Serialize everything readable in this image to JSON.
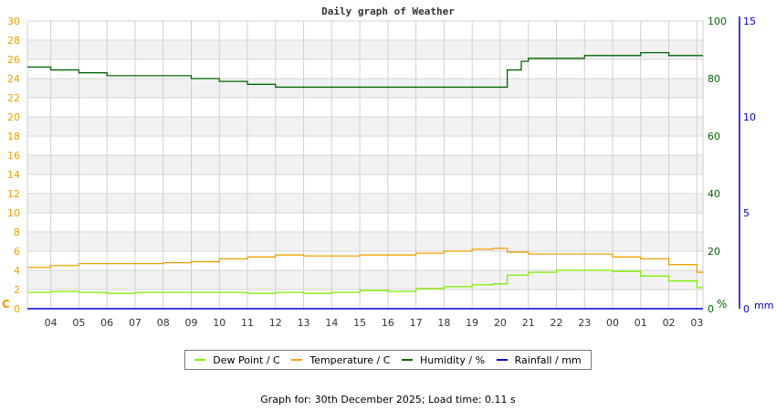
{
  "chart_data": {
    "type": "line",
    "title": "Daily graph of Weather",
    "xlabel": "",
    "x_ticks": [
      "04",
      "05",
      "06",
      "07",
      "08",
      "09",
      "10",
      "11",
      "12",
      "13",
      "14",
      "15",
      "16",
      "17",
      "18",
      "19",
      "20",
      "21",
      "22",
      "23",
      "00",
      "01",
      "02",
      "03"
    ],
    "axes": {
      "left": {
        "unit": "C",
        "ylim": [
          0,
          30
        ],
        "ticks": [
          0,
          2,
          4,
          6,
          8,
          10,
          12,
          14,
          16,
          18,
          20,
          22,
          24,
          26,
          28,
          30
        ],
        "color": "#f0a000"
      },
      "right1": {
        "unit": "%",
        "ylim": [
          0,
          100
        ],
        "ticks": [
          0,
          20,
          40,
          60,
          80,
          100
        ],
        "color": "#006600"
      },
      "right2": {
        "unit": "mm",
        "ylim": [
          0,
          15
        ],
        "ticks": [
          0,
          5,
          10,
          15
        ],
        "color": "#0000cc"
      }
    },
    "grid": true,
    "legend_position": "bottom",
    "series": [
      {
        "name": "Dew Point / C",
        "color": "#80ee00",
        "axis": "left",
        "x": [
          "03:10",
          "04:00",
          "05:00",
          "06:00",
          "07:00",
          "08:00",
          "09:00",
          "10:00",
          "11:00",
          "12:00",
          "13:00",
          "14:00",
          "15:00",
          "16:00",
          "17:00",
          "18:00",
          "19:00",
          "19:45",
          "20:15",
          "21:00",
          "22:00",
          "23:00",
          "00:00",
          "01:00",
          "02:00",
          "03:00"
        ],
        "values": [
          1.7,
          1.8,
          1.7,
          1.6,
          1.7,
          1.7,
          1.7,
          1.7,
          1.6,
          1.7,
          1.6,
          1.7,
          1.9,
          1.8,
          2.1,
          2.3,
          2.5,
          2.6,
          3.5,
          3.8,
          4.0,
          4.0,
          3.9,
          3.4,
          2.9,
          2.2
        ]
      },
      {
        "name": "Temperature / C",
        "color": "#f0a000",
        "axis": "left",
        "x": [
          "03:10",
          "04:00",
          "05:00",
          "06:00",
          "07:00",
          "08:00",
          "09:00",
          "10:00",
          "11:00",
          "12:00",
          "13:00",
          "14:00",
          "15:00",
          "16:00",
          "17:00",
          "18:00",
          "19:00",
          "19:45",
          "20:15",
          "21:00",
          "22:00",
          "23:00",
          "00:00",
          "01:00",
          "02:00",
          "03:00"
        ],
        "values": [
          4.3,
          4.5,
          4.7,
          4.7,
          4.7,
          4.8,
          4.9,
          5.2,
          5.4,
          5.6,
          5.5,
          5.5,
          5.6,
          5.6,
          5.8,
          6.0,
          6.2,
          6.3,
          5.9,
          5.7,
          5.7,
          5.7,
          5.4,
          5.2,
          4.6,
          3.8
        ]
      },
      {
        "name": "Humidity / %",
        "color": "#006600",
        "axis": "right1",
        "x": [
          "03:10",
          "04:00",
          "05:00",
          "06:00",
          "07:00",
          "08:00",
          "09:00",
          "10:00",
          "11:00",
          "12:00",
          "13:00",
          "14:00",
          "15:00",
          "16:00",
          "17:00",
          "18:00",
          "19:00",
          "19:45",
          "20:15",
          "20:45",
          "21:00",
          "22:00",
          "23:00",
          "00:00",
          "01:00",
          "02:00",
          "03:00"
        ],
        "values": [
          84,
          83,
          82,
          81,
          81,
          81,
          80,
          79,
          78,
          77,
          77,
          77,
          77,
          77,
          77,
          77,
          77,
          77,
          83,
          86,
          87,
          87,
          88,
          88,
          89,
          88,
          88
        ]
      },
      {
        "name": "Rainfall / mm",
        "color": "#0000cc",
        "axis": "right2",
        "x": [
          "03:10",
          "03:00"
        ],
        "values": [
          0,
          0
        ]
      }
    ]
  },
  "header": {
    "title": "Daily graph of Weather"
  },
  "axis_labels": {
    "left_unit": "C",
    "right1_unit": "%",
    "right2_unit": "mm"
  },
  "legend": {
    "items": [
      {
        "label": "Dew Point / C",
        "color": "#80ee00"
      },
      {
        "label": "Temperature / C",
        "color": "#f0a000"
      },
      {
        "label": "Humidity / %",
        "color": "#006600"
      },
      {
        "label": "Rainfall / mm",
        "color": "#0000cc"
      }
    ]
  },
  "footer": {
    "text": "Graph for: 30th December 2025; Load time: 0.11 s"
  }
}
